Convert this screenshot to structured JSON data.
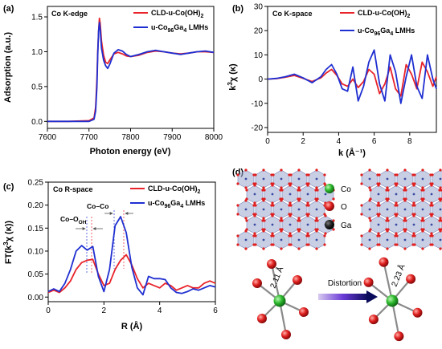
{
  "chart_data": [
    {
      "panel_label": "(a)",
      "type": "line",
      "title": "Co K-edge",
      "xlabel": "Photon energy (eV)",
      "ylabel": "Adsorption (a.u.)",
      "xlim": [
        7600,
        8000
      ],
      "ylim": [
        -0.1,
        1.65
      ],
      "xticks": [
        "7600",
        "7700",
        "7800",
        "7900",
        "8000"
      ],
      "yticks": [
        "0.0",
        "0.5",
        "1.0",
        "1.5"
      ],
      "legend_position": "top-right",
      "series": [
        {
          "name": "CLD-u-Co(OH)2",
          "color": "#e8232a",
          "x": [
            7600,
            7650,
            7700,
            7712,
            7716,
            7719,
            7721,
            7723,
            7725,
            7727,
            7730,
            7735,
            7740,
            7745,
            7750,
            7760,
            7770,
            7780,
            7790,
            7800,
            7820,
            7840,
            7860,
            7880,
            7900,
            7920,
            7940,
            7960,
            7980,
            8000
          ],
          "y": [
            0.0,
            0.0,
            0.01,
            0.05,
            0.2,
            0.6,
            1.0,
            1.3,
            1.48,
            1.4,
            1.15,
            0.95,
            0.85,
            0.83,
            0.88,
            0.97,
            0.99,
            0.97,
            0.94,
            0.93,
            0.95,
            0.99,
            1.01,
            1.0,
            0.98,
            0.97,
            0.98,
            1.0,
            1.0,
            0.99
          ]
        },
        {
          "name": "u-Co96Ga4 LMHs",
          "color": "#1f2fd1",
          "x": [
            7600,
            7650,
            7700,
            7712,
            7716,
            7719,
            7721,
            7723,
            7725,
            7727,
            7730,
            7735,
            7740,
            7745,
            7750,
            7760,
            7770,
            7780,
            7790,
            7800,
            7820,
            7840,
            7860,
            7880,
            7900,
            7920,
            7940,
            7960,
            7980,
            8000
          ],
          "y": [
            0.0,
            0.0,
            0.0,
            0.03,
            0.15,
            0.5,
            0.95,
            1.3,
            1.42,
            1.32,
            1.05,
            0.88,
            0.8,
            0.76,
            0.82,
            0.98,
            1.03,
            1.01,
            0.96,
            0.93,
            0.96,
            1.0,
            1.02,
            1.0,
            0.98,
            0.96,
            0.98,
            1.0,
            1.01,
            0.99
          ]
        }
      ]
    },
    {
      "panel_label": "(b)",
      "type": "line",
      "title": "Co K-space",
      "xlabel": "k (Å⁻¹)",
      "ylabel": "k³χ (κ)",
      "xlim": [
        0,
        9.5
      ],
      "ylim": [
        -22,
        30
      ],
      "xticks": [
        "0",
        "2",
        "4",
        "6",
        "8"
      ],
      "yticks": [
        "-20",
        "-10",
        "0",
        "10",
        "20",
        "30"
      ],
      "legend_position": "top-right",
      "series": [
        {
          "name": "CLD-u-Co(OH)2",
          "color": "#e8232a",
          "x": [
            0,
            0.5,
            1.0,
            1.5,
            2.0,
            2.5,
            3.0,
            3.3,
            3.6,
            3.9,
            4.2,
            4.5,
            4.8,
            5.1,
            5.4,
            5.7,
            6.0,
            6.3,
            6.6,
            6.9,
            7.2,
            7.5,
            7.8,
            8.1,
            8.4,
            8.7,
            9.0,
            9.3,
            9.5
          ],
          "y": [
            0,
            0.2,
            0.8,
            1.5,
            0.3,
            -1.0,
            0.5,
            2.5,
            4.0,
            1.5,
            -2.0,
            -3.0,
            0,
            -3.5,
            -1.0,
            4.0,
            2.0,
            -6.0,
            -2.0,
            5.0,
            -4.0,
            -7.0,
            6.0,
            2.0,
            -4.0,
            7.0,
            3.0,
            -3.0,
            1.0
          ]
        },
        {
          "name": "u-Co96Ga4 LMHs",
          "color": "#1f2fd1",
          "x": [
            0,
            0.5,
            1.0,
            1.5,
            2.0,
            2.5,
            3.0,
            3.3,
            3.6,
            3.9,
            4.2,
            4.5,
            4.8,
            5.1,
            5.4,
            5.7,
            6.0,
            6.3,
            6.6,
            6.9,
            7.2,
            7.5,
            7.8,
            8.1,
            8.4,
            8.7,
            9.0,
            9.3,
            9.5
          ],
          "y": [
            0,
            0.3,
            1.0,
            2.0,
            0.5,
            -1.5,
            1.0,
            4.0,
            6.0,
            2.0,
            -4.0,
            -5.0,
            5.0,
            -9.0,
            -3.0,
            7.0,
            12.0,
            -2.0,
            -9.0,
            10.0,
            3.0,
            -10.0,
            1.0,
            10.0,
            -3.0,
            -8.0,
            10.0,
            0,
            -4.0
          ]
        }
      ]
    },
    {
      "panel_label": "(c)",
      "type": "line",
      "title": "Co R-space",
      "xlabel": "R (Å)",
      "ylabel": "FT(k³χ(κ))",
      "xlim": [
        0,
        6
      ],
      "ylim": [
        -0.01,
        0.25
      ],
      "xticks": [
        "0",
        "2",
        "4",
        "6"
      ],
      "yticks": [
        "0.00",
        "0.05",
        "0.10",
        "0.15",
        "0.20",
        "0.25"
      ],
      "legend_position": "top-right",
      "annotations": [
        "Co–O",
        "OH",
        "Co–Co"
      ],
      "series": [
        {
          "name": "CLD-u-Co(OH)2",
          "color": "#e8232a",
          "x": [
            0,
            0.2,
            0.4,
            0.6,
            0.8,
            1.0,
            1.2,
            1.4,
            1.6,
            1.8,
            2.0,
            2.2,
            2.4,
            2.6,
            2.8,
            3.0,
            3.2,
            3.4,
            3.6,
            3.8,
            4.0,
            4.2,
            4.4,
            4.6,
            4.8,
            5.0,
            5.2,
            5.4,
            5.6,
            5.8,
            6.0
          ],
          "y": [
            0.01,
            0.015,
            0.01,
            0.02,
            0.035,
            0.06,
            0.075,
            0.08,
            0.082,
            0.05,
            0.025,
            0.03,
            0.06,
            0.08,
            0.092,
            0.07,
            0.04,
            0.02,
            0.03,
            0.025,
            0.02,
            0.03,
            0.025,
            0.015,
            0.02,
            0.025,
            0.02,
            0.02,
            0.03,
            0.035,
            0.03
          ]
        },
        {
          "name": "u-Co96Ga4 LMHs",
          "color": "#1f2fd1",
          "x": [
            0,
            0.2,
            0.4,
            0.6,
            0.8,
            1.0,
            1.2,
            1.4,
            1.6,
            1.8,
            2.0,
            2.2,
            2.4,
            2.6,
            2.8,
            3.0,
            3.2,
            3.4,
            3.6,
            3.8,
            4.0,
            4.2,
            4.4,
            4.6,
            4.8,
            5.0,
            5.2,
            5.4,
            5.6,
            5.8,
            6.0
          ],
          "y": [
            0.012,
            0.018,
            0.012,
            0.03,
            0.06,
            0.1,
            0.112,
            0.102,
            0.11,
            0.045,
            0.012,
            0.06,
            0.155,
            0.175,
            0.14,
            0.065,
            0.02,
            0.005,
            0.045,
            0.04,
            0.04,
            0.038,
            0.02,
            0.01,
            0.008,
            0.012,
            0.018,
            0.015,
            0.02,
            0.025,
            0.022
          ]
        }
      ]
    }
  ],
  "panel_d": {
    "panel_label": "(d)",
    "legend": [
      {
        "label": "Co",
        "color": "#2db82d"
      },
      {
        "label": "O",
        "color": "#e02020"
      },
      {
        "label": "Ga",
        "color": "#111111"
      }
    ],
    "bond_left": "2.11 Å",
    "bond_right": "2.23 Å",
    "arrow_label": "Distortion"
  },
  "legend_labels": {
    "s1_main": "CLD-u-Co(OH)",
    "s1_sub": "2",
    "s2_pre": "u-Co",
    "s2_sub1": "96",
    "s2_mid": "Ga",
    "s2_sub2": "4",
    "s2_post": " LMHs"
  },
  "axis_text": {
    "a_ylabel": "Adsorption (a.u.)",
    "a_xlabel": "Photon energy (eV)",
    "b_ylabel_pre": "k",
    "b_ylabel_sup": "3",
    "b_ylabel_post": "χ (κ)",
    "b_xlabel": "k (Å⁻¹)",
    "c_ylabel_pre": "FT(k",
    "c_ylabel_sup": "3",
    "c_ylabel_post": "χ (κ))",
    "c_xlabel": "R (Å)",
    "c_ann_coo": "Co–O",
    "c_ann_oh": "OH",
    "c_ann_coco": "Co–Co"
  }
}
